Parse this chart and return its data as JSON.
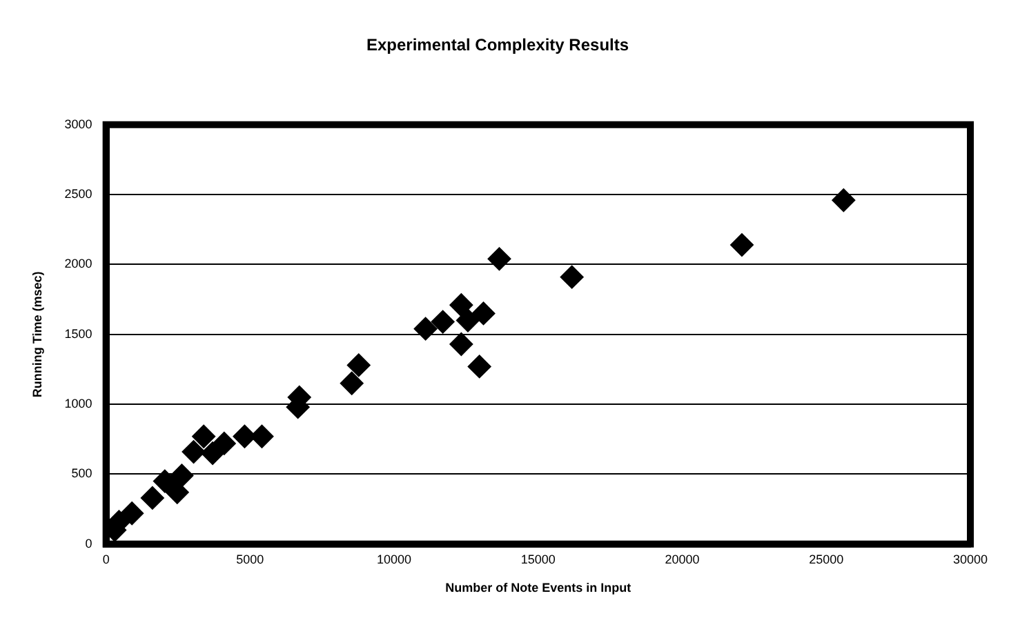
{
  "chart_data": {
    "type": "scatter",
    "title": "Experimental Complexity Results",
    "xlabel": "Number of Note Events in Input",
    "ylabel": "Running Time (msec)",
    "series": [
      {
        "color": "#000000",
        "x": [
          300,
          450,
          900,
          1610,
          2040,
          2470,
          2630,
          3040,
          3390,
          3700,
          4100,
          4810,
          5410,
          6660,
          6710,
          8530,
          8770,
          11090,
          11690,
          12330,
          12330,
          12560,
          12960,
          13100,
          13650,
          16170,
          22070,
          25600
        ],
        "values": [
          100,
          160,
          220,
          330,
          450,
          370,
          490,
          660,
          770,
          650,
          720,
          770,
          770,
          980,
          1050,
          1150,
          1280,
          1540,
          1590,
          1710,
          1430,
          1600,
          1270,
          1650,
          2040,
          1910,
          2140,
          2460
        ]
      }
    ],
    "xlim": [
      0,
      30000
    ],
    "xticks": [
      0,
      5000,
      10000,
      15000,
      20000,
      25000,
      30000
    ],
    "ylim": [
      0,
      3000
    ],
    "yticks": [
      0,
      500,
      1000,
      1500,
      2000,
      2500,
      3000
    ],
    "grid": "y",
    "legend": false,
    "marker": "diamond"
  }
}
